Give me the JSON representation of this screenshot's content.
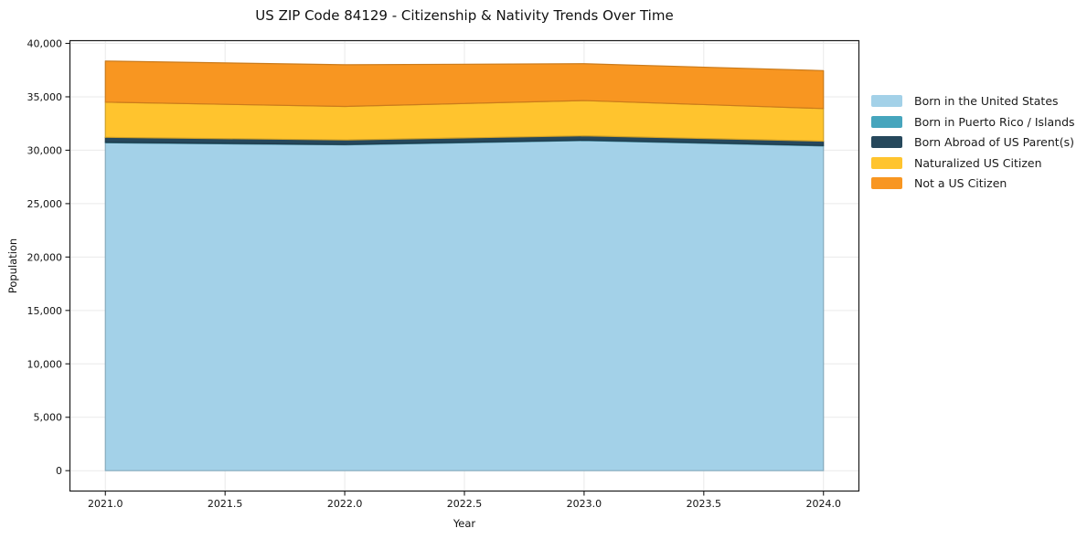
{
  "chart": {
    "title": "US ZIP Code 84129 - Citizenship & Nativity Trends Over Time",
    "xlabel": "Year",
    "ylabel": "Population"
  },
  "chart_data": {
    "type": "area",
    "stacked": true,
    "title": "US ZIP Code 84129 - Citizenship & Nativity Trends Over Time",
    "xlabel": "Year",
    "ylabel": "Population",
    "grid": true,
    "legend_position": "right-outside",
    "x": [
      2021,
      2022,
      2023,
      2024
    ],
    "series": [
      {
        "name": "Born in the United States",
        "color": "#A3D1E8",
        "values": [
          30700,
          30500,
          30900,
          30400
        ]
      },
      {
        "name": "Born in Puerto Rico / Islands",
        "color": "#46A5BD",
        "values": [
          40,
          40,
          40,
          40
        ]
      },
      {
        "name": "Born Abroad of US Parent(s)",
        "color": "#26485C",
        "values": [
          470,
          420,
          410,
          410
        ]
      },
      {
        "name": "Naturalized US Citizen",
        "color": "#FFC42E",
        "values": [
          3290,
          3140,
          3300,
          3050
        ]
      },
      {
        "name": "Not a US Citizen",
        "color": "#F89621",
        "values": [
          3850,
          3900,
          3450,
          3550
        ]
      }
    ],
    "stack_totals": [
      38350,
      38000,
      38100,
      37450
    ],
    "xlim": [
      2020.85,
      2024.15
    ],
    "ylim": [
      -1950,
      40300
    ],
    "x_ticks": [
      {
        "v": 2021,
        "label": "2021.0"
      },
      {
        "v": 2021.5,
        "label": "2021.5"
      },
      {
        "v": 2022,
        "label": "2022.0"
      },
      {
        "v": 2022.5,
        "label": "2022.5"
      },
      {
        "v": 2023,
        "label": "2023.0"
      },
      {
        "v": 2023.5,
        "label": "2023.5"
      },
      {
        "v": 2024,
        "label": "2024.0"
      }
    ],
    "y_ticks": [
      {
        "v": 0,
        "label": "0"
      },
      {
        "v": 5000,
        "label": "5,000"
      },
      {
        "v": 10000,
        "label": "10,000"
      },
      {
        "v": 15000,
        "label": "15,000"
      },
      {
        "v": 20000,
        "label": "20,000"
      },
      {
        "v": 25000,
        "label": "25,000"
      },
      {
        "v": 30000,
        "label": "30,000"
      },
      {
        "v": 35000,
        "label": "35,000"
      },
      {
        "v": 40000,
        "label": "40,000"
      }
    ],
    "colors": {
      "grid": "#eaeaea",
      "spine": "#1a1a1a",
      "background": "#ffffff"
    }
  }
}
